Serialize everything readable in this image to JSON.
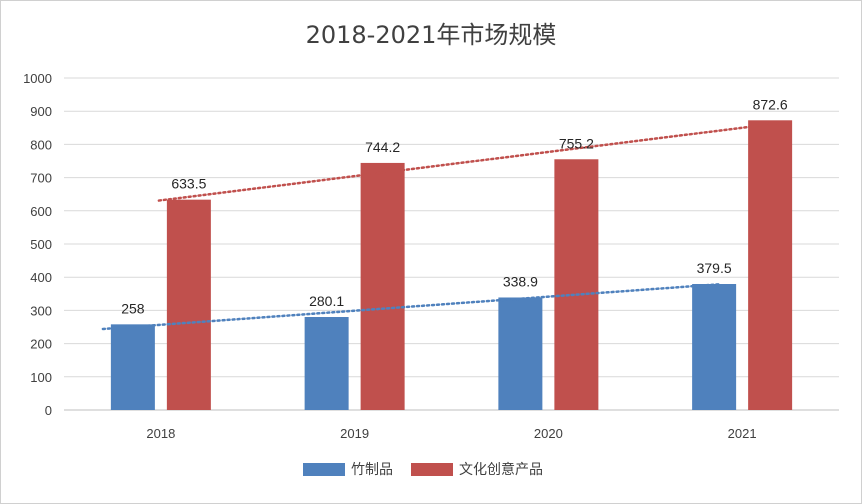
{
  "chart_data": {
    "type": "bar",
    "title": "2018-2021年市场规模",
    "categories": [
      "2018",
      "2019",
      "2020",
      "2021"
    ],
    "series": [
      {
        "name": "竹制品",
        "values": [
          258,
          280.1,
          338.9,
          379.5
        ],
        "color": "#4F81BD",
        "trendline": "linear"
      },
      {
        "name": "文化创意产品",
        "values": [
          633.5,
          744.2,
          755.2,
          872.6
        ],
        "color": "#C0504D",
        "trendline": "linear"
      }
    ],
    "value_labels": [
      [
        "258",
        "280.1",
        "338.9",
        "379.5"
      ],
      [
        "633.5",
        "744.2",
        "755.2",
        "872.6"
      ]
    ],
    "yticks": [
      "0",
      "100",
      "200",
      "300",
      "400",
      "500",
      "600",
      "700",
      "800",
      "900",
      "1000"
    ],
    "ylim": [
      0,
      1000
    ],
    "grid": true,
    "legend_position": "bottom",
    "xlabel": "",
    "ylabel": ""
  }
}
